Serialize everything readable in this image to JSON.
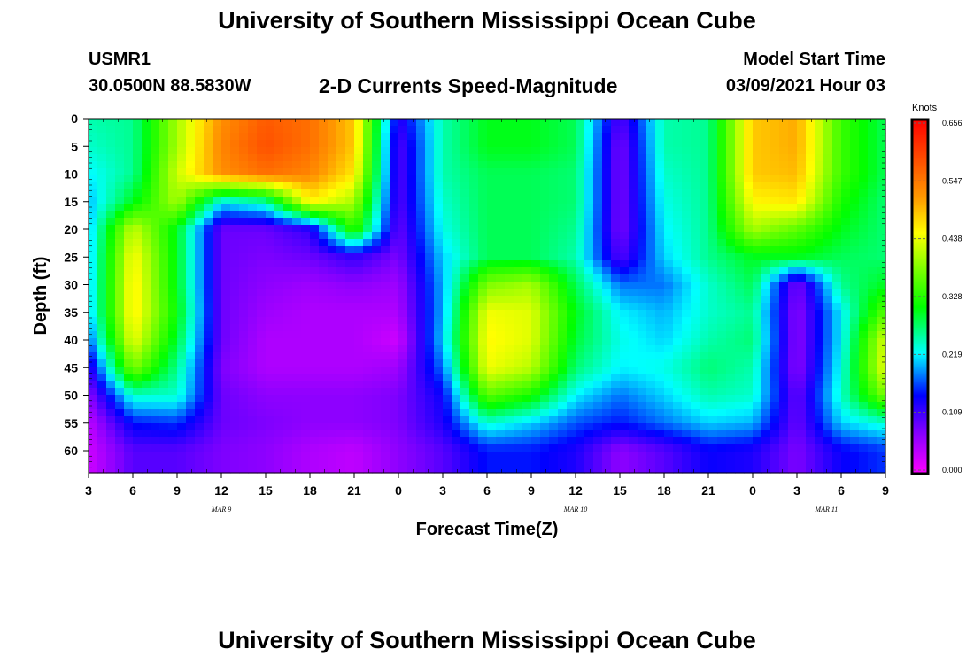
{
  "header": {
    "title": "University of Southern Mississippi Ocean Cube",
    "station": "USMR1",
    "coords": "30.0500N 88.5830W",
    "product": "2-D Currents Speed-Magnitude",
    "model_start_label": "Model Start Time",
    "model_start_value": "03/09/2021 Hour 03"
  },
  "footer": {
    "title": "University of Southern Mississippi Ocean Cube"
  },
  "chart_data": {
    "type": "heatmap",
    "xlabel": "Forecast Time(Z)",
    "ylabel": "Depth (ft)",
    "x_ticks": [
      "3",
      "6",
      "9",
      "12",
      "15",
      "18",
      "21",
      "0",
      "3",
      "6",
      "9",
      "12",
      "15",
      "18",
      "21",
      "0",
      "3",
      "6",
      "9"
    ],
    "date_labels": [
      {
        "label": "MAR 9",
        "hour_index": 9
      },
      {
        "label": "MAR 10",
        "hour_index": 33
      },
      {
        "label": "MAR 11",
        "hour_index": 50
      }
    ],
    "x_range_hours_from_start": [
      0,
      54
    ],
    "y_ticks": [
      0,
      5,
      10,
      15,
      20,
      25,
      30,
      35,
      40,
      45,
      50,
      55,
      60
    ],
    "ylim": [
      0,
      64
    ],
    "colorbar": {
      "unit": "Knots",
      "ticks": [
        "0.656",
        "0.547",
        "0.438",
        "0.328",
        "0.219",
        "0.109",
        "0.000"
      ],
      "range": [
        0,
        0.656
      ]
    },
    "grid_note": "speed in knots; rows = depth (ft) at 0,5,...,60; columns = forecast hour offset 0,3,...,54",
    "depths": [
      0,
      5,
      10,
      15,
      20,
      25,
      30,
      35,
      40,
      45,
      50,
      55,
      60
    ],
    "hours": [
      0,
      3,
      6,
      9,
      12,
      15,
      18,
      21,
      24,
      27,
      30,
      33,
      36,
      39,
      42,
      45,
      48,
      51,
      54
    ],
    "values": [
      [
        0.25,
        0.26,
        0.4,
        0.52,
        0.57,
        0.55,
        0.48,
        0.12,
        0.25,
        0.3,
        0.3,
        0.28,
        0.1,
        0.25,
        0.26,
        0.48,
        0.5,
        0.34,
        0.28
      ],
      [
        0.24,
        0.26,
        0.4,
        0.53,
        0.58,
        0.55,
        0.48,
        0.1,
        0.25,
        0.3,
        0.3,
        0.28,
        0.08,
        0.25,
        0.26,
        0.48,
        0.5,
        0.34,
        0.28
      ],
      [
        0.22,
        0.26,
        0.42,
        0.52,
        0.55,
        0.53,
        0.46,
        0.1,
        0.25,
        0.28,
        0.28,
        0.27,
        0.08,
        0.24,
        0.26,
        0.48,
        0.49,
        0.34,
        0.28
      ],
      [
        0.2,
        0.3,
        0.4,
        0.22,
        0.25,
        0.45,
        0.4,
        0.1,
        0.24,
        0.28,
        0.28,
        0.27,
        0.08,
        0.23,
        0.26,
        0.45,
        0.46,
        0.32,
        0.27
      ],
      [
        0.2,
        0.42,
        0.3,
        0.09,
        0.09,
        0.12,
        0.34,
        0.09,
        0.23,
        0.28,
        0.28,
        0.26,
        0.08,
        0.22,
        0.26,
        0.4,
        0.36,
        0.3,
        0.27
      ],
      [
        0.2,
        0.45,
        0.3,
        0.09,
        0.08,
        0.09,
        0.12,
        0.08,
        0.21,
        0.28,
        0.28,
        0.25,
        0.1,
        0.21,
        0.26,
        0.3,
        0.3,
        0.28,
        0.27
      ],
      [
        0.2,
        0.46,
        0.3,
        0.09,
        0.07,
        0.06,
        0.07,
        0.06,
        0.2,
        0.38,
        0.4,
        0.28,
        0.18,
        0.18,
        0.24,
        0.28,
        0.08,
        0.26,
        0.3
      ],
      [
        0.2,
        0.46,
        0.31,
        0.09,
        0.06,
        0.05,
        0.05,
        0.05,
        0.2,
        0.44,
        0.43,
        0.3,
        0.22,
        0.2,
        0.24,
        0.26,
        0.07,
        0.22,
        0.36
      ],
      [
        0.17,
        0.44,
        0.29,
        0.09,
        0.05,
        0.05,
        0.05,
        0.03,
        0.21,
        0.45,
        0.43,
        0.29,
        0.23,
        0.21,
        0.25,
        0.27,
        0.07,
        0.22,
        0.43
      ],
      [
        0.11,
        0.38,
        0.26,
        0.08,
        0.05,
        0.05,
        0.05,
        0.06,
        0.18,
        0.44,
        0.41,
        0.27,
        0.22,
        0.23,
        0.27,
        0.25,
        0.07,
        0.23,
        0.44
      ],
      [
        0.07,
        0.24,
        0.24,
        0.09,
        0.07,
        0.07,
        0.07,
        0.08,
        0.14,
        0.36,
        0.32,
        0.22,
        0.18,
        0.21,
        0.25,
        0.24,
        0.09,
        0.24,
        0.38
      ],
      [
        0.04,
        0.15,
        0.16,
        0.09,
        0.08,
        0.07,
        0.07,
        0.08,
        0.13,
        0.24,
        0.21,
        0.17,
        0.15,
        0.18,
        0.21,
        0.2,
        0.09,
        0.21,
        0.24
      ],
      [
        0.03,
        0.1,
        0.1,
        0.08,
        0.07,
        0.05,
        0.04,
        0.07,
        0.1,
        0.15,
        0.15,
        0.13,
        0.07,
        0.1,
        0.14,
        0.13,
        0.08,
        0.14,
        0.16
      ]
    ]
  }
}
